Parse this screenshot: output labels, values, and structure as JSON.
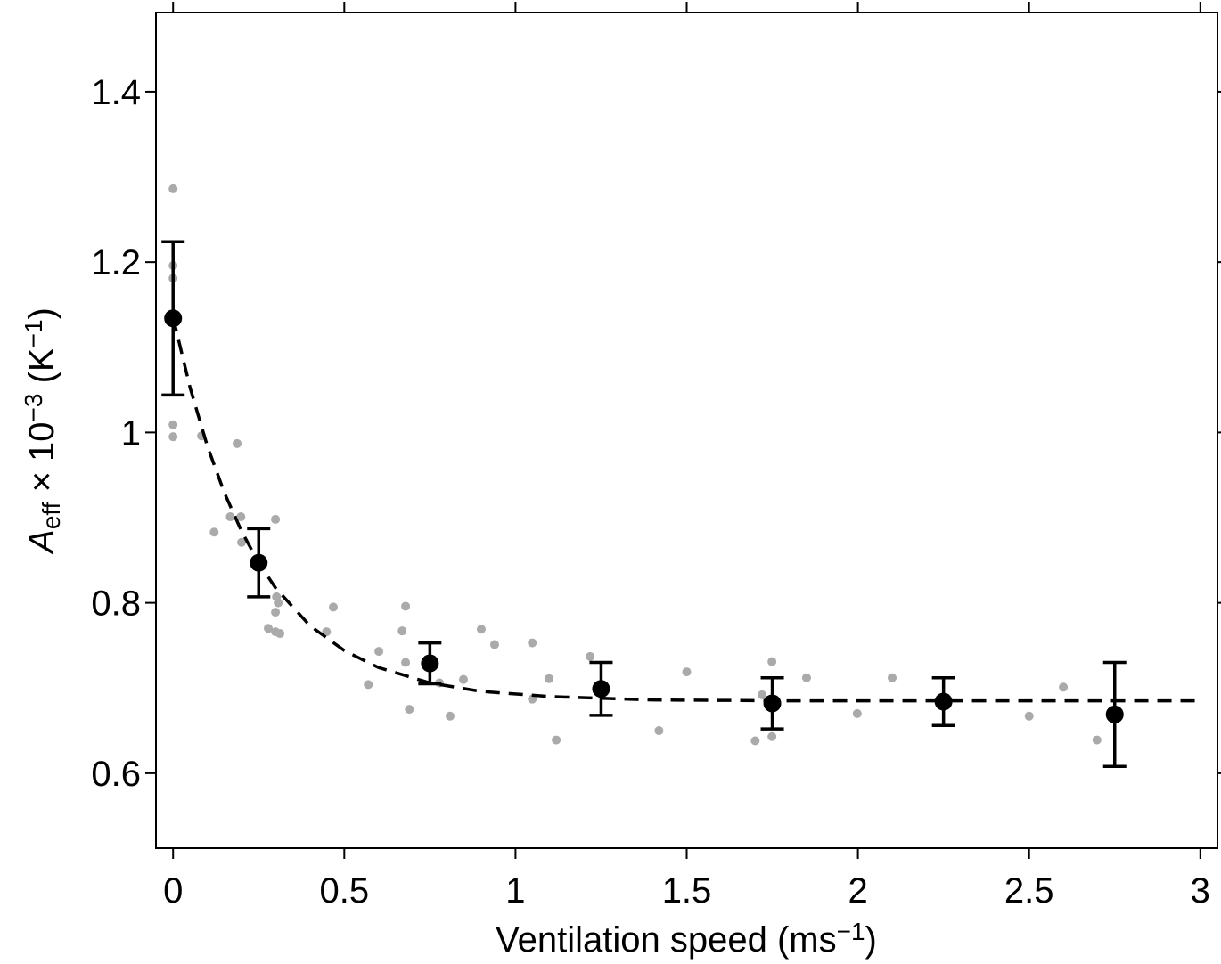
{
  "chart_data": {
    "type": "scatter",
    "x_label": [
      {
        "text": "Ventilation speed (ms",
        "shift": "none"
      },
      {
        "text": "−1",
        "shift": "sup"
      },
      {
        "text": ")",
        "shift": "none"
      }
    ],
    "y_label": [
      {
        "text": "A",
        "shift": "none",
        "style": "italic"
      },
      {
        "text": "eff",
        "shift": "sub"
      },
      {
        "text": " × 10",
        "shift": "none"
      },
      {
        "text": "−3",
        "shift": "sup"
      },
      {
        "text": " (K",
        "shift": "none"
      },
      {
        "text": "−1",
        "shift": "sup"
      },
      {
        "text": ")",
        "shift": "none"
      }
    ],
    "xlim": [
      -0.05,
      3.05
    ],
    "ylim": [
      0.512,
      1.493
    ],
    "xticks": [
      0,
      0.5,
      1,
      1.5,
      2,
      2.5,
      3
    ],
    "yticks": [
      0.6,
      0.8,
      1,
      1.2,
      1.4
    ],
    "series": [
      {
        "mode": "markers",
        "color": "#aaaaaa",
        "x": [
          0,
          0,
          0,
          0,
          0,
          0.083,
          0.187,
          0.167,
          0.198,
          0.12,
          0.2,
          0.299,
          0.302,
          0.307,
          0.299,
          0.278,
          0.299,
          0.312,
          0.468,
          0.448,
          0.679,
          0.669,
          0.679,
          0.601,
          0.57,
          0.69,
          0.778,
          0.809,
          0.848,
          0.9,
          0.939,
          1.049,
          1.049,
          1.098,
          1.119,
          1.218,
          1.419,
          1.5,
          1.7,
          1.72,
          1.749,
          1.749,
          1.85,
          1.998,
          2.1,
          2.5,
          2.6,
          2.698
        ],
        "values": [
          1.286,
          1.196,
          1.181,
          1.009,
          0.995,
          0.996,
          0.987,
          0.901,
          0.901,
          0.883,
          0.871,
          0.898,
          0.807,
          0.8,
          0.789,
          0.77,
          0.766,
          0.764,
          0.795,
          0.766,
          0.796,
          0.767,
          0.73,
          0.743,
          0.704,
          0.675,
          0.706,
          0.667,
          0.71,
          0.769,
          0.751,
          0.753,
          0.687,
          0.711,
          0.639,
          0.737,
          0.65,
          0.719,
          0.638,
          0.692,
          0.731,
          0.643,
          0.712,
          0.67,
          0.712,
          0.667,
          0.701,
          0.639
        ]
      },
      {
        "mode": "line",
        "color": "#000000",
        "dash": true,
        "x": [
          0,
          0.05,
          0.1,
          0.15,
          0.2,
          0.25,
          0.3,
          0.4,
          0.5,
          0.6,
          0.75,
          0.9,
          1.1,
          1.4,
          1.8,
          2.3,
          3.0
        ],
        "values": [
          1.135,
          1.052,
          0.984,
          0.929,
          0.884,
          0.847,
          0.817,
          0.773,
          0.744,
          0.724,
          0.706,
          0.696,
          0.69,
          0.686,
          0.685,
          0.685,
          0.685
        ]
      },
      {
        "mode": "errorbars",
        "color": "#000000",
        "x": [
          0,
          0.25,
          0.75,
          1.25,
          1.75,
          2.25,
          2.75
        ],
        "values": [
          1.134,
          0.847,
          0.729,
          0.699,
          0.682,
          0.684,
          0.669
        ],
        "errors": [
          0.09,
          0.04,
          0.024,
          0.031,
          0.03,
          0.028,
          0.061
        ]
      }
    ]
  }
}
